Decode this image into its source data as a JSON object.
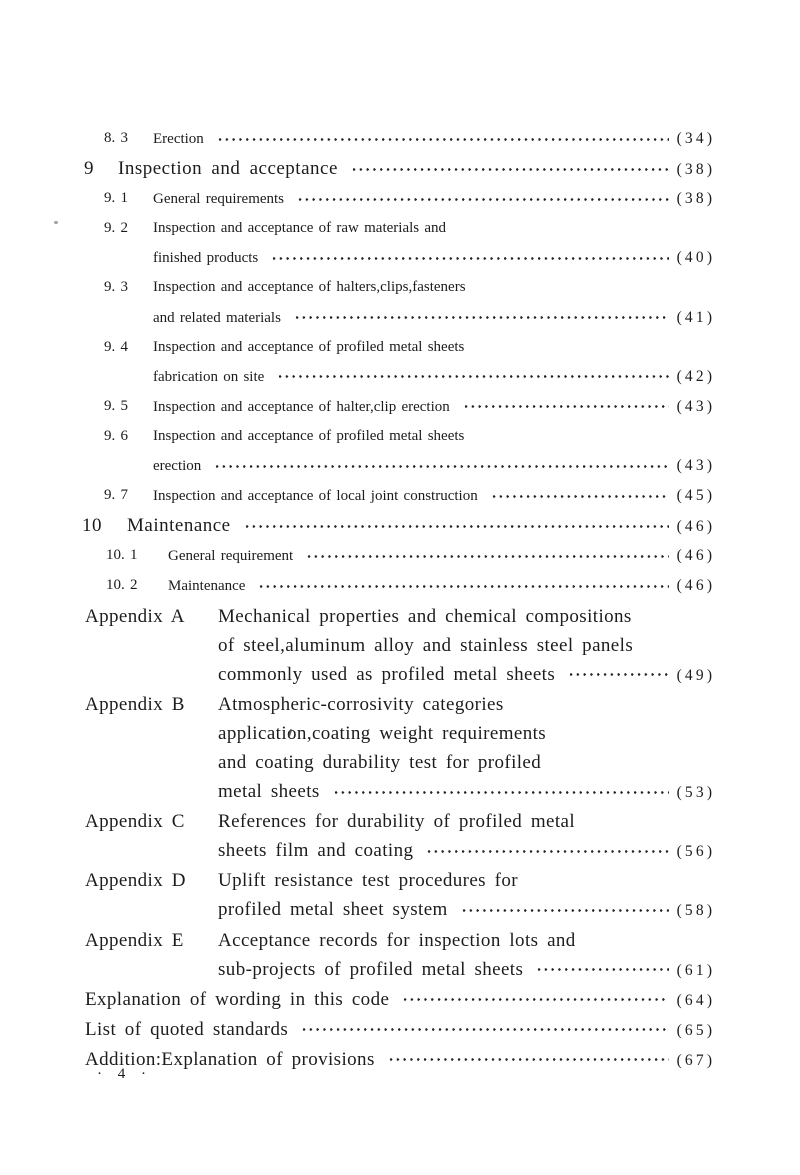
{
  "page": {
    "footer": "· 4 ·",
    "toc_entries": [
      {
        "level": "sub",
        "num": "8. 3",
        "lines": [
          "Erection"
        ],
        "page": "(34)"
      },
      {
        "level": "section",
        "num": "9",
        "lines": [
          "Inspection and acceptance"
        ],
        "page": "(38)"
      },
      {
        "level": "sub",
        "num": "9. 1",
        "lines": [
          "General requirements"
        ],
        "page": "(38)"
      },
      {
        "level": "sub",
        "num": "9. 2",
        "lines": [
          "Inspection and acceptance of raw materials and",
          "finished products"
        ],
        "page": "(40)"
      },
      {
        "level": "sub",
        "num": "9. 3",
        "lines": [
          "Inspection and acceptance of halters,clips,fasteners",
          "and related materials"
        ],
        "page": "(41)"
      },
      {
        "level": "sub",
        "num": "9. 4",
        "lines": [
          "Inspection and acceptance of profiled metal sheets",
          "fabrication on site"
        ],
        "page": "(42)"
      },
      {
        "level": "sub",
        "num": "9. 5",
        "lines": [
          "Inspection and acceptance of halter,clip erection"
        ],
        "page": "(43)"
      },
      {
        "level": "sub",
        "num": "9. 6",
        "lines": [
          "Inspection and acceptance of profiled metal sheets",
          "erection"
        ],
        "page": "(43)"
      },
      {
        "level": "sub",
        "num": "9. 7",
        "lines": [
          "Inspection and acceptance of local joint construction"
        ],
        "page": "(45)"
      },
      {
        "level": "section",
        "num": "10",
        "lines": [
          "Maintenance"
        ],
        "page": "(46)"
      },
      {
        "level": "sub",
        "num": "10. 1",
        "lines": [
          "General requirement"
        ],
        "page": "(46)"
      },
      {
        "level": "sub",
        "num": "10. 2",
        "lines": [
          "Maintenance"
        ],
        "page": "(46)"
      },
      {
        "level": "appendix",
        "num": "Appendix A",
        "lines": [
          "Mechanical properties and chemical compositions",
          "of steel,aluminum alloy and stainless steel panels",
          "commonly used as profiled metal sheets"
        ],
        "page": "(49)"
      },
      {
        "level": "appendix",
        "num": "Appendix B",
        "lines": [
          "Atmospheric-corrosivity categories",
          "application,coating weight requirements",
          "and coating durability test for profiled",
          "metal sheets"
        ],
        "page": "(53)"
      },
      {
        "level": "appendix",
        "num": "Appendix C",
        "lines": [
          "References for durability of profiled metal",
          "sheets film and coating"
        ],
        "page": "(56)"
      },
      {
        "level": "appendix",
        "num": "Appendix D",
        "lines": [
          "Uplift resistance test procedures for",
          "profiled metal sheet system"
        ],
        "page": "(58)"
      },
      {
        "level": "appendix",
        "num": "Appendix E",
        "lines": [
          "Acceptance records for inspection lots and",
          "sub-projects of profiled metal sheets"
        ],
        "page": "(61)"
      },
      {
        "level": "plain",
        "num": "",
        "lines": [
          "Explanation of wording in this code"
        ],
        "page": "(64)"
      },
      {
        "level": "plain",
        "num": "",
        "lines": [
          "List of quoted standards"
        ],
        "page": "(65)"
      },
      {
        "level": "plain",
        "num": "",
        "lines": [
          "Addition:Explanation of provisions"
        ],
        "page": "(67)"
      }
    ]
  }
}
